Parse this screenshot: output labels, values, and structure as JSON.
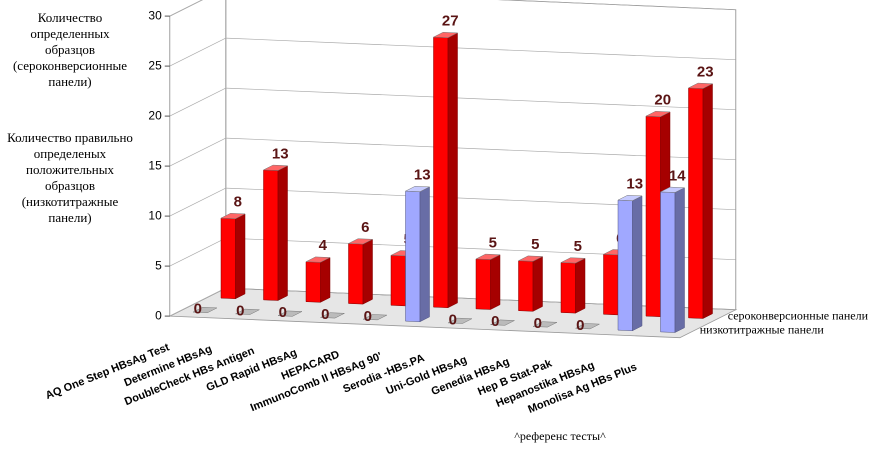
{
  "chart_data": {
    "type": "bar3d",
    "annotations": [
      "Количество определенных образцов (сероконверсионные панели)",
      "Количество правильно определеных положительных образцов (низкотитражные панели)"
    ],
    "footnote": "^референс тесты^",
    "categories": [
      "AQ One Step HBsAg Test",
      "Determine HBsAg",
      "DoubleCheck HBs Antigen",
      "GLD Rapid HBsAg",
      "HEPACARD",
      "ImmunoComb II HBsAg 90'",
      "Serodia -HBs.PA",
      "Uni-Gold HBsAg",
      "Genedia HBsAg",
      "Hep B Stat-Pak",
      "Hepanostika HBsAg",
      "Monolisa Ag HBs Plus"
    ],
    "series": [
      {
        "name": "сероконверсионные панели",
        "color": "#ff0000",
        "values": [
          8,
          13,
          4,
          6,
          5,
          27,
          5,
          5,
          5,
          6,
          20,
          23
        ]
      },
      {
        "name": "низкотитражные панели",
        "color": "#a0a8ff",
        "values": [
          0,
          0,
          0,
          0,
          0,
          13,
          0,
          0,
          0,
          0,
          13,
          14
        ]
      }
    ],
    "ylim": [
      0,
      30
    ],
    "yticks": [
      0,
      5,
      10,
      15,
      20,
      25,
      30
    ],
    "grid": true
  }
}
